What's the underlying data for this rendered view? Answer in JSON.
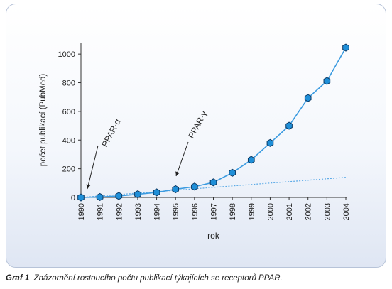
{
  "chart_data": {
    "type": "line",
    "x": [
      "1990",
      "1991",
      "1992",
      "1993",
      "1994",
      "1995",
      "1996",
      "1997",
      "1998",
      "1999",
      "2000",
      "2001",
      "2002",
      "2003",
      "2004"
    ],
    "series": [
      {
        "values": [
          0,
          3,
          10,
          22,
          35,
          57,
          75,
          105,
          172,
          262,
          380,
          500,
          693,
          812,
          1045
        ]
      },
      {
        "values_trend": [
          0,
          10,
          20,
          30,
          40,
          50,
          60,
          70,
          80,
          90,
          100,
          110,
          120,
          130,
          140
        ]
      }
    ],
    "xlabel": "rok",
    "ylabel": "počet publikací (PubMed)",
    "yticks": [
      0,
      200,
      400,
      600,
      800,
      1000
    ],
    "ylim": [
      0,
      1080
    ],
    "annotations": [
      {
        "text": "PPAR-α",
        "x": "1990"
      },
      {
        "text": "PPAR-γ",
        "x": "1995"
      }
    ],
    "colors": {
      "series": "#3b9be0",
      "marker": "#1f8fd8",
      "trend": "#5aa9e6",
      "axis": "#333333"
    }
  },
  "caption": {
    "label": "Graf 1",
    "text": "Znázornění rostoucího počtu publikací týkajících se receptorů PPAR."
  }
}
